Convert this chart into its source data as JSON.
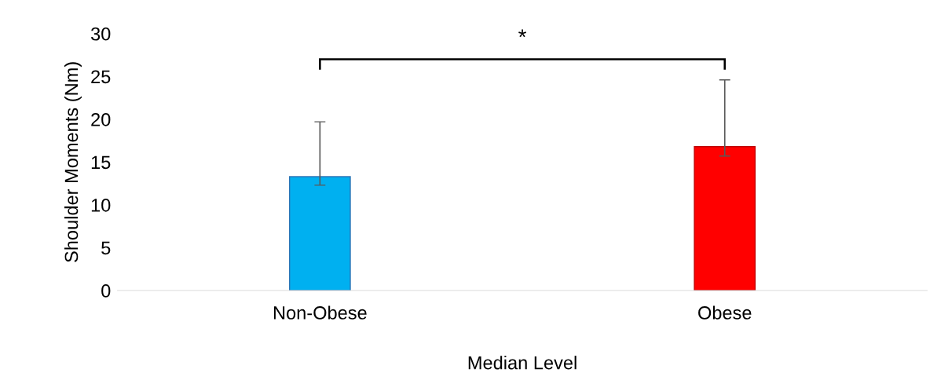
{
  "chart_data": {
    "type": "bar",
    "xlabel": "Median Level",
    "ylabel": "Shoulder Moments (Nm)",
    "categories": [
      "Non-Obese",
      "Obese"
    ],
    "values": [
      13.3,
      16.8
    ],
    "colors": [
      "#00b0f0",
      "#ff0000"
    ],
    "errors": [
      [
        12.3,
        19.7
      ],
      [
        15.7,
        24.6
      ]
    ],
    "ylim": [
      0,
      30
    ],
    "yticks": [
      0,
      5,
      10,
      15,
      20,
      25,
      30
    ],
    "grid": false,
    "annotations": [
      "*"
    ]
  }
}
